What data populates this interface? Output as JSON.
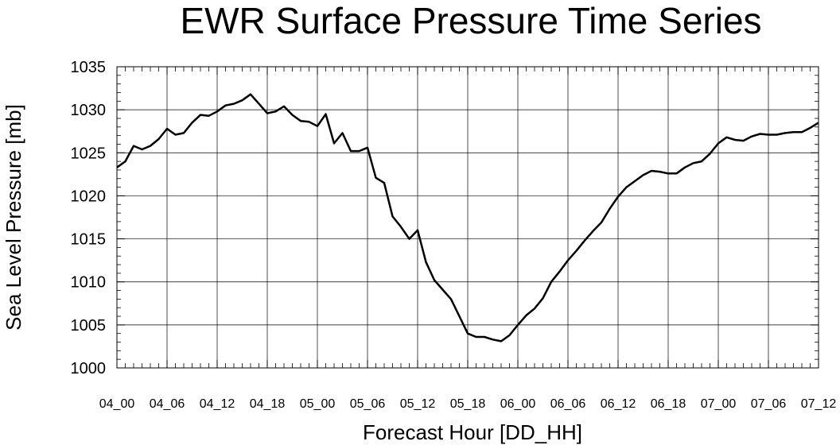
{
  "chart_data": {
    "type": "line",
    "title": "EWR Surface Pressure Time Series",
    "xlabel": "Forecast Hour [DD_HH]",
    "ylabel": "Sea Level Pressure [mb]",
    "ylim": [
      1000,
      1035
    ],
    "yticks": [
      "1000",
      "1005",
      "1010",
      "1015",
      "1020",
      "1025",
      "1030",
      "1035"
    ],
    "xlim": [
      0,
      84
    ],
    "xticks": [
      {
        "hour": 0,
        "label": "04_00"
      },
      {
        "hour": 6,
        "label": "04_06"
      },
      {
        "hour": 12,
        "label": "04_12"
      },
      {
        "hour": 18,
        "label": "04_18"
      },
      {
        "hour": 24,
        "label": "05_00"
      },
      {
        "hour": 30,
        "label": "05_06"
      },
      {
        "hour": 36,
        "label": "05_12"
      },
      {
        "hour": 42,
        "label": "05_18"
      },
      {
        "hour": 48,
        "label": "06_00"
      },
      {
        "hour": 54,
        "label": "06_06"
      },
      {
        "hour": 60,
        "label": "06_12"
      },
      {
        "hour": 66,
        "label": "06_18"
      },
      {
        "hour": 72,
        "label": "07_00"
      },
      {
        "hour": 78,
        "label": "07_06"
      },
      {
        "hour": 84,
        "label": "07_12"
      }
    ],
    "grid": true,
    "line_color": "#000000",
    "series": [
      {
        "x": [
          0,
          1,
          2,
          3,
          4,
          5,
          6,
          7,
          8,
          9,
          10,
          11,
          12,
          13,
          14,
          15,
          16,
          17,
          18,
          19,
          20,
          21,
          22,
          23,
          24,
          25,
          26,
          27,
          28,
          29,
          30,
          31,
          32,
          33,
          34,
          35,
          36,
          37,
          38,
          39,
          40,
          41,
          42,
          43,
          44,
          45,
          46,
          47,
          48,
          49,
          50,
          51,
          52,
          53,
          54,
          55,
          56,
          57,
          58,
          59,
          60,
          61,
          62,
          63,
          64,
          65,
          66,
          67,
          68,
          69,
          70,
          71,
          72,
          73,
          74,
          75,
          76,
          77,
          78,
          79,
          80,
          81,
          82,
          83,
          84
        ],
        "values": [
          1023.3,
          1024.0,
          1025.8,
          1025.4,
          1025.8,
          1026.6,
          1027.8,
          1027.1,
          1027.3,
          1028.5,
          1029.4,
          1029.3,
          1029.8,
          1030.5,
          1030.7,
          1031.1,
          1031.8,
          1030.7,
          1029.6,
          1029.8,
          1030.4,
          1029.4,
          1028.7,
          1028.6,
          1028.1,
          1029.5,
          1026.1,
          1027.3,
          1025.2,
          1025.2,
          1025.6,
          1022.1,
          1021.5,
          1017.6,
          1016.4,
          1015.0,
          1016.0,
          1012.3,
          1010.2,
          1009.1,
          1008.0,
          1006.0,
          1004.0,
          1003.6,
          1003.6,
          1003.3,
          1003.1,
          1003.8,
          1005.0,
          1006.1,
          1006.9,
          1008.1,
          1010.0,
          1011.2,
          1012.5,
          1013.6,
          1014.8,
          1015.9,
          1016.9,
          1018.5,
          1019.9,
          1021.0,
          1021.7,
          1022.4,
          1022.9,
          1022.8,
          1022.6,
          1022.6,
          1023.3,
          1023.8,
          1024.0,
          1024.9,
          1026.1,
          1026.8,
          1026.5,
          1026.4,
          1026.9,
          1027.2,
          1027.1,
          1027.1,
          1027.3,
          1027.4,
          1027.4,
          1027.9,
          1028.5
        ]
      }
    ]
  }
}
